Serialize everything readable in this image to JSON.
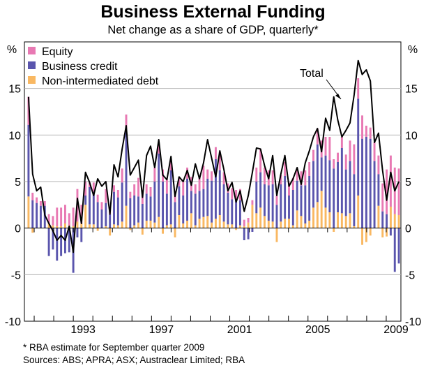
{
  "chart_data": {
    "type": "bar",
    "stacked": true,
    "title": "Business External Funding",
    "subtitle": "Net change as a share of GDP, quarterly*",
    "y_unit_left": "%",
    "y_unit_right": "%",
    "ylim": [
      -10,
      20
    ],
    "yticks": [
      -10,
      -5,
      0,
      5,
      10,
      15
    ],
    "x_start_year": 1990.5,
    "x_end_year": 2009.75,
    "x_tick_years": [
      1993,
      1997,
      2001,
      2005,
      2009
    ],
    "x_tick_labels": [
      "1993",
      "1997",
      "2001",
      "2005",
      "2009"
    ],
    "legend": [
      "Equity",
      "Business credit",
      "Non-intermediated debt"
    ],
    "colors": {
      "equity": "#e879b3",
      "business_credit": "#5a55ad",
      "non_intermediated_debt": "#f9b862",
      "total": "#000000",
      "gridline": "#b3b3b3",
      "axis": "#000000"
    },
    "total_annotation": "Total",
    "series": [
      {
        "name": "Equity",
        "values": [
          3.0,
          0.8,
          0.6,
          0.5,
          0.5,
          1.0,
          1.0,
          2.0,
          2.0,
          2.0,
          1.3,
          2.0,
          3.5,
          2.0,
          1.5,
          0.5,
          1.0,
          0.8,
          0.8,
          1.5,
          0.8,
          0.7,
          0.8,
          1.5,
          1.8,
          0.7,
          1.2,
          2.0,
          1.2,
          1.0,
          1.0,
          1.5,
          1.0,
          1.3,
          1.5,
          1.0,
          1.2,
          1.0,
          1.5,
          1.2,
          1.5,
          1.0,
          1.5,
          2.5,
          1.0,
          1.0,
          1.3,
          2.0,
          1.3,
          1.0,
          1.2,
          1.0,
          1.2,
          0.7,
          0.5,
          0.5,
          1.5,
          2.5,
          1.8,
          1.6,
          1.5,
          1.0,
          1.0,
          1.5,
          1.4,
          1.3,
          1.3,
          1.5,
          1.6,
          1.5,
          1.2,
          1.7,
          1.8,
          2.0,
          2.5,
          1.0,
          1.0,
          1.2,
          1.6,
          2.2,
          3.2,
          2.2,
          2.5,
          1.2,
          1.2,
          2.0,
          2.0,
          3.0,
          4.8,
          5.5,
          5.0,
          5.0
        ]
      },
      {
        "name": "Business credit",
        "values": [
          7.7,
          3.0,
          2.7,
          2.4,
          2.4,
          -3.0,
          -2.3,
          -3.5,
          -3.0,
          -2.7,
          -2.6,
          -4.8,
          -1.0,
          -1.5,
          1.0,
          4.0,
          3.5,
          2.8,
          2.0,
          2.5,
          1.5,
          3.5,
          3.0,
          4.2,
          8.0,
          3.2,
          3.2,
          2.8,
          2.6,
          2.9,
          2.6,
          4.4,
          6.8,
          5.0,
          3.4,
          5.8,
          2.8,
          3.1,
          3.0,
          4.5,
          2.4,
          3.4,
          3.0,
          3.0,
          4.0,
          4.5,
          6.4,
          4.8,
          4.0,
          3.4,
          2.7,
          3.1,
          2.7,
          -1.3,
          -1.2,
          -0.4,
          3.4,
          3.8,
          3.4,
          3.8,
          4.0,
          2.5,
          4.0,
          4.6,
          2.5,
          3.8,
          3.2,
          3.3,
          4.1,
          4.8,
          5.0,
          6.2,
          3.6,
          5.6,
          5.6,
          6.4,
          5.4,
          7.0,
          5.0,
          5.6,
          5.6,
          10.4,
          9.6,
          9.8,
          9.6,
          7.2,
          3.4,
          1.8,
          1.5,
          -0.8,
          -4.7,
          -3.8
        ]
      },
      {
        "name": "Non-intermediated debt",
        "values": [
          3.4,
          -0.5,
          0.0,
          0.0,
          0.0,
          0.5,
          0.3,
          0.2,
          0.2,
          0.5,
          0.3,
          0.2,
          0.7,
          0.5,
          2.5,
          0.4,
          0.4,
          -0.3,
          0.0,
          0.2,
          -0.8,
          0.4,
          0.3,
          0.7,
          2.4,
          -0.2,
          0.3,
          0.6,
          -0.7,
          0.8,
          0.8,
          0.6,
          1.2,
          -0.6,
          0.3,
          0.4,
          -1.0,
          1.4,
          0.5,
          0.8,
          1.6,
          0.3,
          1.0,
          1.2,
          1.3,
          0.6,
          1.0,
          1.4,
          0.7,
          0.4,
          0.4,
          -0.2,
          0.3,
          0.2,
          0.6,
          2.5,
          1.6,
          2.2,
          1.3,
          0.8,
          0.7,
          -1.5,
          0.7,
          1.0,
          1.0,
          0.3,
          1.9,
          1.3,
          0.5,
          0.8,
          2.2,
          2.8,
          4.0,
          2.2,
          1.7,
          -0.4,
          1.7,
          1.6,
          1.3,
          1.6,
          0.2,
          3.5,
          -1.8,
          -1.5,
          -0.8,
          0.0,
          2.4,
          -1.0,
          -0.9,
          2.3,
          1.5,
          1.4
        ]
      }
    ],
    "total": [
      14.1,
      5.8,
      4.0,
      4.4,
      1.4,
      0.5,
      -0.3,
      -1.3,
      -0.8,
      -1.3,
      0.2,
      -2.6,
      3.2,
      0.5,
      6.0,
      4.9,
      3.5,
      5.3,
      4.5,
      5.0,
      1.5,
      6.8,
      5.5,
      8.5,
      11.0,
      5.7,
      6.5,
      7.3,
      3.3,
      7.8,
      8.8,
      6.5,
      9.5,
      5.7,
      5.2,
      7.7,
      3.4,
      5.5,
      5.0,
      6.2,
      4.6,
      6.9,
      5.3,
      7.0,
      9.5,
      7.5,
      5.5,
      8.3,
      6.3,
      4.0,
      4.9,
      2.8,
      4.0,
      1.8,
      3.5,
      6.0,
      8.6,
      8.5,
      6.7,
      5.3,
      7.8,
      3.5,
      5.8,
      7.8,
      4.5,
      5.3,
      6.5,
      4.7,
      7.0,
      8.3,
      9.8,
      10.7,
      8.2,
      11.8,
      10.5,
      14.1,
      11.6,
      9.8,
      10.5,
      11.3,
      14.3,
      18.0,
      16.5,
      17.0,
      15.8,
      9.2,
      10.2,
      6.2,
      3.0,
      6.0,
      4.0,
      5.0
    ],
    "footnote": "*   RBA estimate for September quarter 2009",
    "sources": "Sources: ABS; APRA; ASX; Austraclear Limited; RBA"
  }
}
